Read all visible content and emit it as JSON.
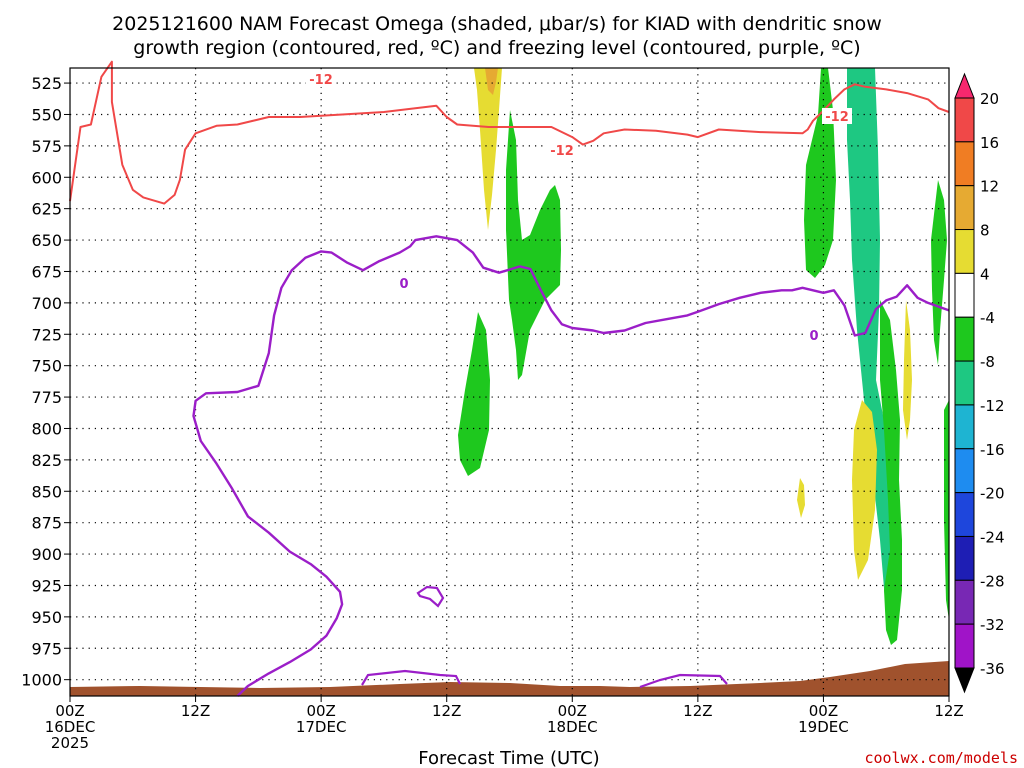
{
  "chart_data": {
    "type": "heatmap",
    "title_lines": [
      "2025121600 NAM Forecast Omega (shaded, μbar/s) for KIAD with dendritic snow",
      "growth region (contoured, red, ºC) and freezing level (contoured, purple, ºC)"
    ],
    "xlabel": "Forecast Time (UTC)",
    "x_ticks": [
      {
        "hour": 0,
        "lines": [
          "00Z",
          "16DEC",
          "2025"
        ]
      },
      {
        "hour": 12,
        "lines": [
          "12Z"
        ]
      },
      {
        "hour": 24,
        "lines": [
          "00Z",
          "17DEC"
        ]
      },
      {
        "hour": 36,
        "lines": [
          "12Z"
        ]
      },
      {
        "hour": 48,
        "lines": [
          "00Z",
          "18DEC"
        ]
      },
      {
        "hour": 60,
        "lines": [
          "12Z"
        ]
      },
      {
        "hour": 72,
        "lines": [
          "00Z",
          "19DEC"
        ]
      },
      {
        "hour": 84,
        "lines": [
          "12Z"
        ]
      }
    ],
    "xlim": [
      0,
      84
    ],
    "ylabel": "",
    "y_ticks": [
      525,
      550,
      575,
      600,
      625,
      650,
      675,
      700,
      725,
      750,
      775,
      800,
      825,
      850,
      875,
      900,
      925,
      950,
      975,
      1000
    ],
    "ylim": [
      513,
      1013
    ],
    "grid": true,
    "colorbar": {
      "levels": [
        20,
        16,
        12,
        8,
        4,
        -4,
        -8,
        -12,
        -16,
        -20,
        -24,
        -28,
        -32,
        -36
      ],
      "colors": [
        "#f7286e",
        "#f04848",
        "#f07d23",
        "#e6aa32",
        "#e6dc32",
        "#ffffff",
        "#1ec81e",
        "#1ec882",
        "#1eb4d2",
        "#1e8cf0",
        "#1e46dc",
        "#1e1eb4",
        "#7828b4",
        "#a014c8",
        "#a0a0a0",
        "#000000"
      ]
    },
    "contour_labels": [
      {
        "text": "-12",
        "color": "#f04848"
      },
      {
        "text": "-12",
        "color": "#f04848"
      },
      {
        "text": "-12",
        "color": "#f04848"
      },
      {
        "text": "0",
        "color": "#9b1ec8"
      },
      {
        "text": "0",
        "color": "#9b1ec8"
      }
    ],
    "series": [
      {
        "color": "#f04848",
        "points": [
          [
            0,
            619
          ],
          [
            1,
            560
          ],
          [
            2,
            558
          ],
          [
            3,
            520
          ],
          [
            4,
            508
          ],
          [
            4,
            513
          ],
          [
            4,
            540
          ],
          [
            5,
            590
          ],
          [
            6,
            610
          ],
          [
            7,
            616
          ],
          [
            9,
            621
          ],
          [
            10,
            614
          ],
          [
            10.5,
            602
          ],
          [
            11,
            578
          ],
          [
            12,
            565
          ],
          [
            14,
            559
          ],
          [
            16,
            558
          ],
          [
            19,
            552
          ],
          [
            22,
            552
          ],
          [
            26,
            550
          ],
          [
            30,
            548
          ],
          [
            33,
            545
          ],
          [
            35,
            543
          ],
          [
            36,
            552
          ],
          [
            37,
            558
          ],
          [
            40,
            560
          ],
          [
            44,
            560
          ],
          [
            46,
            560
          ],
          [
            48,
            568
          ],
          [
            49,
            574
          ],
          [
            50,
            571
          ],
          [
            51,
            565
          ],
          [
            53,
            562
          ],
          [
            56,
            563
          ],
          [
            59,
            566
          ],
          [
            60,
            568
          ],
          [
            62,
            562
          ],
          [
            66,
            564
          ],
          [
            70,
            565
          ],
          [
            70.5,
            562
          ],
          [
            71,
            555
          ],
          [
            72,
            547
          ],
          [
            73,
            538
          ],
          [
            74,
            530
          ],
          [
            75,
            526
          ],
          [
            76,
            528
          ],
          [
            78,
            530
          ],
          [
            80,
            533
          ],
          [
            82,
            538
          ],
          [
            83,
            545
          ],
          [
            84,
            548
          ]
        ]
      },
      {
        "color": "#9b1ec8",
        "points": [
          [
            16,
            1013
          ],
          [
            17,
            1005
          ],
          [
            19,
            995
          ],
          [
            21,
            986
          ],
          [
            23,
            976
          ],
          [
            24.5,
            965
          ],
          [
            25.5,
            951
          ],
          [
            26.0,
            940
          ],
          [
            25.8,
            930
          ],
          [
            24.5,
            918
          ],
          [
            23,
            908
          ],
          [
            21,
            898
          ],
          [
            19,
            883
          ],
          [
            17,
            870
          ],
          [
            15.5,
            848
          ],
          [
            14,
            828
          ],
          [
            12.5,
            810
          ],
          [
            11.8,
            790
          ],
          [
            12.0,
            778
          ],
          [
            13,
            772
          ],
          [
            16,
            771
          ],
          [
            18,
            766
          ],
          [
            19,
            740
          ],
          [
            19.5,
            710
          ],
          [
            20.2,
            688
          ],
          [
            21.2,
            674
          ],
          [
            22.5,
            664
          ],
          [
            24,
            659
          ],
          [
            25,
            660
          ],
          [
            26.5,
            668
          ],
          [
            28,
            674
          ],
          [
            29.5,
            667
          ],
          [
            31.5,
            660
          ],
          [
            32.5,
            655
          ],
          [
            33,
            650
          ],
          [
            35,
            647
          ],
          [
            37,
            650
          ],
          [
            38.5,
            660
          ],
          [
            39.5,
            672
          ],
          [
            41,
            676
          ],
          [
            43,
            671
          ],
          [
            44,
            673
          ],
          [
            45,
            690
          ],
          [
            46,
            706
          ],
          [
            47,
            717
          ],
          [
            48,
            720
          ],
          [
            50,
            722
          ],
          [
            51,
            724
          ],
          [
            53,
            722
          ],
          [
            55,
            716
          ],
          [
            57,
            713
          ],
          [
            59,
            710
          ],
          [
            60,
            707
          ],
          [
            62,
            701
          ],
          [
            64,
            696
          ],
          [
            66,
            692
          ],
          [
            68,
            690
          ],
          [
            69,
            690
          ],
          [
            70,
            688
          ],
          [
            71,
            690
          ],
          [
            72,
            692
          ],
          [
            73,
            690
          ],
          [
            74,
            702
          ],
          [
            75,
            726
          ],
          [
            76,
            724
          ],
          [
            77,
            705
          ],
          [
            78,
            698
          ],
          [
            79,
            695
          ],
          [
            80,
            686
          ],
          [
            81,
            696
          ],
          [
            82,
            700
          ],
          [
            83,
            703
          ],
          [
            84,
            706
          ]
        ]
      }
    ]
  },
  "credit": "coolwx.com/models"
}
